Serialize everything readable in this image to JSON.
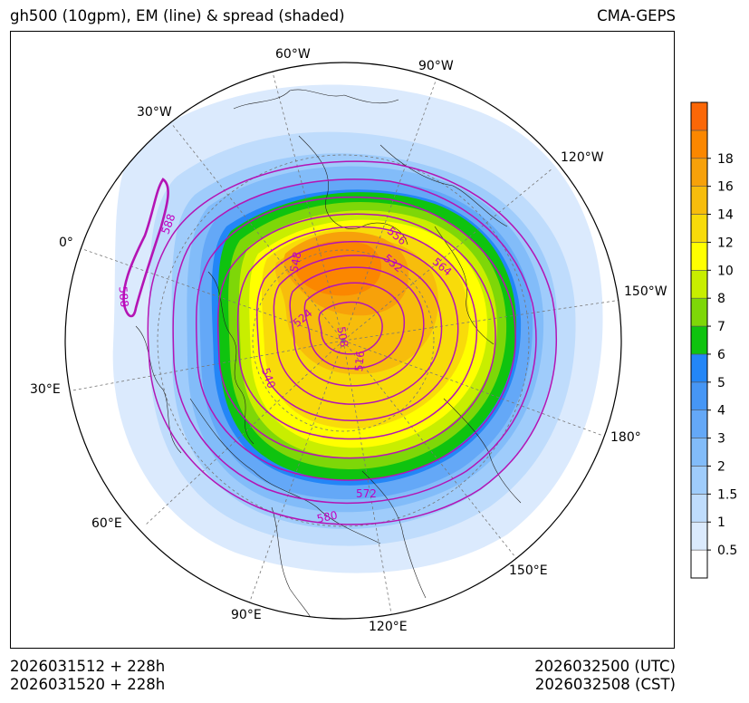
{
  "header": {
    "title_left": "gh500 (10gpm), EM (line) & spread (shaded)",
    "title_right": "CMA-GEPS"
  },
  "footer": {
    "init_utc": "2026031512 + 228h",
    "init_cst": "2026031520 + 228h",
    "valid_utc": "2026032500 (UTC)",
    "valid_cst": "2026032508 (CST)"
  },
  "map": {
    "projection": "north-polar-stereographic",
    "longitude_labels": [
      "60°W",
      "90°W",
      "30°W",
      "120°W",
      "0°",
      "150°W",
      "30°E",
      "180°",
      "60°E",
      "150°E",
      "90°E",
      "120°E"
    ],
    "contour_labels": [
      "588",
      "588",
      "548",
      "556",
      "532",
      "564",
      "524",
      "508",
      "516",
      "540",
      "572",
      "580"
    ]
  },
  "colorbar": {
    "ticks": [
      "0.5",
      "1",
      "1.5",
      "2",
      "3",
      "4",
      "5",
      "6",
      "7",
      "8",
      "10",
      "12",
      "14",
      "16",
      "18"
    ],
    "colors": [
      "#ffffff",
      "#dbeafd",
      "#bfdcfc",
      "#9fccfb",
      "#82bcf9",
      "#64a8f7",
      "#4696f5",
      "#2386f7",
      "#0fc30f",
      "#7ed708",
      "#c8ee00",
      "#ffff00",
      "#f8db0a",
      "#f7bd0c",
      "#f7a10a",
      "#fb8700",
      "#fb6707"
    ]
  },
  "colors": {
    "contour": "#b414b4",
    "contour_label": "#c000c0",
    "coast": "#222222"
  }
}
